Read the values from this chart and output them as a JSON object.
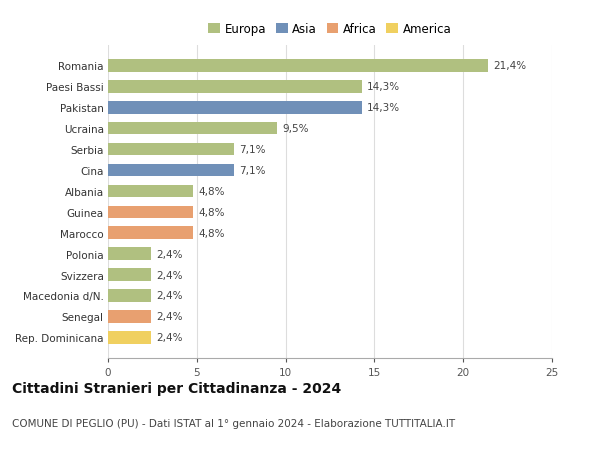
{
  "categories": [
    "Rep. Dominicana",
    "Senegal",
    "Macedonia d/N.",
    "Svizzera",
    "Polonia",
    "Marocco",
    "Guinea",
    "Albania",
    "Cina",
    "Serbia",
    "Ucraina",
    "Pakistan",
    "Paesi Bassi",
    "Romania"
  ],
  "values": [
    2.4,
    2.4,
    2.4,
    2.4,
    2.4,
    4.8,
    4.8,
    4.8,
    7.1,
    7.1,
    9.5,
    14.3,
    14.3,
    21.4
  ],
  "labels": [
    "2,4%",
    "2,4%",
    "2,4%",
    "2,4%",
    "2,4%",
    "4,8%",
    "4,8%",
    "4,8%",
    "7,1%",
    "7,1%",
    "9,5%",
    "14,3%",
    "14,3%",
    "21,4%"
  ],
  "colors": [
    "#f0d060",
    "#e8a070",
    "#b0c080",
    "#b0c080",
    "#b0c080",
    "#e8a070",
    "#e8a070",
    "#b0c080",
    "#7090b8",
    "#b0c080",
    "#b0c080",
    "#7090b8",
    "#b0c080",
    "#b0c080"
  ],
  "legend_labels": [
    "Europa",
    "Asia",
    "Africa",
    "America"
  ],
  "legend_colors": [
    "#b0c080",
    "#7090b8",
    "#e8a070",
    "#f0d060"
  ],
  "title": "Cittadini Stranieri per Cittadinanza - 2024",
  "subtitle": "COMUNE DI PEGLIO (PU) - Dati ISTAT al 1° gennaio 2024 - Elaborazione TUTTITALIA.IT",
  "xlim": [
    0,
    25
  ],
  "xticks": [
    0,
    5,
    10,
    15,
    20,
    25
  ],
  "background_color": "#ffffff",
  "bar_height": 0.6,
  "label_fontsize": 7.5,
  "title_fontsize": 10,
  "subtitle_fontsize": 7.5,
  "tick_fontsize": 7.5,
  "legend_fontsize": 8.5
}
